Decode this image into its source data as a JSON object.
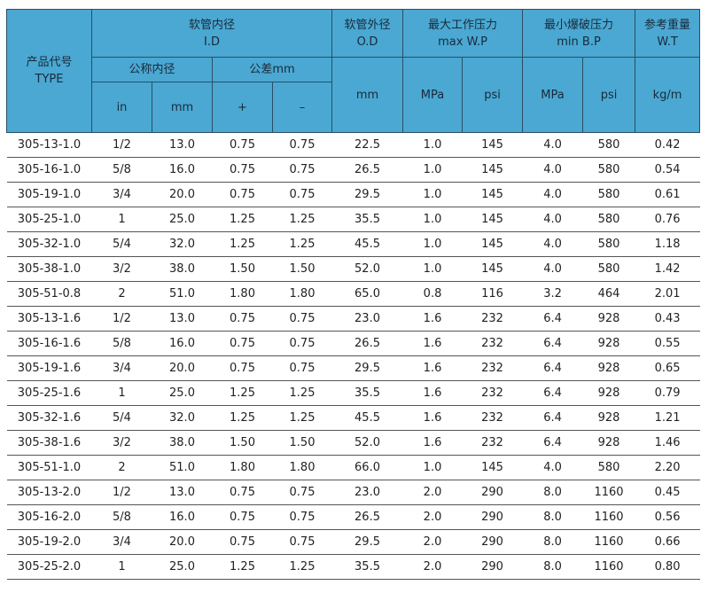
{
  "headers": {
    "type": {
      "cn": "产品代号",
      "en": "TYPE"
    },
    "id": {
      "cn": "软管内径",
      "en": "I.D"
    },
    "nominal": "公称内径",
    "tolerance": "公差mm",
    "od": {
      "cn": "软管外径",
      "en": "O.D"
    },
    "wp": {
      "cn": "最大工作压力",
      "en": "max W.P"
    },
    "bp": {
      "cn": "最小爆破压力",
      "en": "min B.P"
    },
    "wt": {
      "cn": "参考重量",
      "en": "W.T"
    },
    "units": [
      "in",
      "mm",
      "+",
      "–",
      "mm",
      "MPa",
      "psi",
      "MPa",
      "psi",
      "kg/m"
    ]
  },
  "header_color": "#4aa8d2",
  "rows": [
    [
      "305-13-1.0",
      "1/2",
      "13.0",
      "0.75",
      "0.75",
      "22.5",
      "1.0",
      "145",
      "4.0",
      "580",
      "0.42"
    ],
    [
      "305-16-1.0",
      "5/8",
      "16.0",
      "0.75",
      "0.75",
      "26.5",
      "1.0",
      "145",
      "4.0",
      "580",
      "0.54"
    ],
    [
      "305-19-1.0",
      "3/4",
      "20.0",
      "0.75",
      "0.75",
      "29.5",
      "1.0",
      "145",
      "4.0",
      "580",
      "0.61"
    ],
    [
      "305-25-1.0",
      "1",
      "25.0",
      "1.25",
      "1.25",
      "35.5",
      "1.0",
      "145",
      "4.0",
      "580",
      "0.76"
    ],
    [
      "305-32-1.0",
      "5/4",
      "32.0",
      "1.25",
      "1.25",
      "45.5",
      "1.0",
      "145",
      "4.0",
      "580",
      "1.18"
    ],
    [
      "305-38-1.0",
      "3/2",
      "38.0",
      "1.50",
      "1.50",
      "52.0",
      "1.0",
      "145",
      "4.0",
      "580",
      "1.42"
    ],
    [
      "305-51-0.8",
      "2",
      "51.0",
      "1.80",
      "1.80",
      "65.0",
      "0.8",
      "116",
      "3.2",
      "464",
      "2.01"
    ],
    [
      "305-13-1.6",
      "1/2",
      "13.0",
      "0.75",
      "0.75",
      "23.0",
      "1.6",
      "232",
      "6.4",
      "928",
      "0.43"
    ],
    [
      "305-16-1.6",
      "5/8",
      "16.0",
      "0.75",
      "0.75",
      "26.5",
      "1.6",
      "232",
      "6.4",
      "928",
      "0.55"
    ],
    [
      "305-19-1.6",
      "3/4",
      "20.0",
      "0.75",
      "0.75",
      "29.5",
      "1.6",
      "232",
      "6.4",
      "928",
      "0.65"
    ],
    [
      "305-25-1.6",
      "1",
      "25.0",
      "1.25",
      "1.25",
      "35.5",
      "1.6",
      "232",
      "6.4",
      "928",
      "0.79"
    ],
    [
      "305-32-1.6",
      "5/4",
      "32.0",
      "1.25",
      "1.25",
      "45.5",
      "1.6",
      "232",
      "6.4",
      "928",
      "1.21"
    ],
    [
      "305-38-1.6",
      "3/2",
      "38.0",
      "1.50",
      "1.50",
      "52.0",
      "1.6",
      "232",
      "6.4",
      "928",
      "1.46"
    ],
    [
      "305-51-1.0",
      "2",
      "51.0",
      "1.80",
      "1.80",
      "66.0",
      "1.0",
      "145",
      "4.0",
      "580",
      "2.20"
    ],
    [
      "305-13-2.0",
      "1/2",
      "13.0",
      "0.75",
      "0.75",
      "23.0",
      "2.0",
      "290",
      "8.0",
      "1160",
      "0.45"
    ],
    [
      "305-16-2.0",
      "5/8",
      "16.0",
      "0.75",
      "0.75",
      "26.5",
      "2.0",
      "290",
      "8.0",
      "1160",
      "0.56"
    ],
    [
      "305-19-2.0",
      "3/4",
      "20.0",
      "0.75",
      "0.75",
      "29.5",
      "2.0",
      "290",
      "8.0",
      "1160",
      "0.66"
    ],
    [
      "305-25-2.0",
      "1",
      "25.0",
      "1.25",
      "1.25",
      "35.5",
      "2.0",
      "290",
      "8.0",
      "1160",
      "0.80"
    ]
  ]
}
